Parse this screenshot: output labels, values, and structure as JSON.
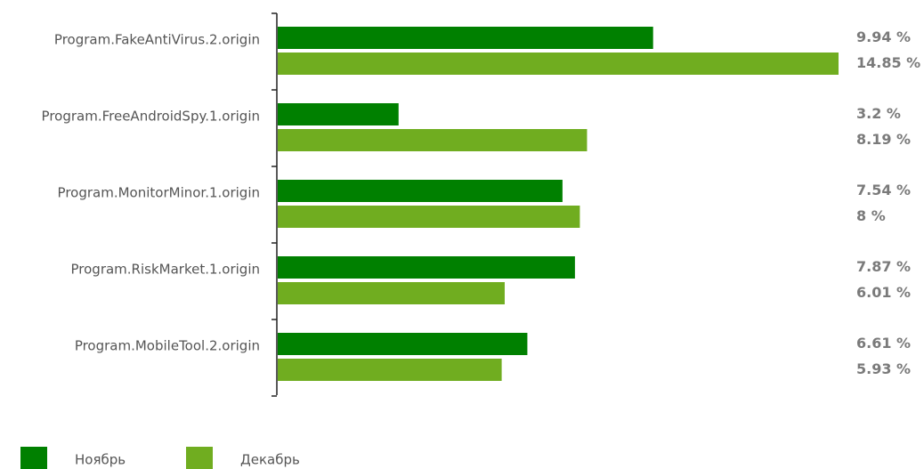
{
  "chart_data": {
    "type": "bar",
    "orientation": "horizontal",
    "categories": [
      "Program.FakeAntiVirus.2.origin",
      "Program.FreeAndroidSpy.1.origin",
      "Program.MonitorMinor.1.origin",
      "Program.RiskMarket.1.origin",
      "Program.MobileTool.2.origin"
    ],
    "series": [
      {
        "name": "Ноябрь",
        "color": "#008000",
        "values": [
          9.94,
          3.2,
          7.54,
          7.87,
          6.61
        ],
        "labels": [
          "9.94 %",
          "3.2 %",
          "7.54 %",
          "7.87 %",
          "6.61 %"
        ]
      },
      {
        "name": "Декабрь",
        "color": "#70ad20",
        "values": [
          14.85,
          8.19,
          8,
          6.01,
          5.93
        ],
        "labels": [
          "14.85 %",
          "8.19 %",
          "8 %",
          "6.01 %",
          "5.93 %"
        ]
      }
    ],
    "xlim": [
      0,
      14.85
    ],
    "grid": false,
    "legend_position": "bottom-left",
    "title": "",
    "xlabel": "",
    "ylabel": ""
  }
}
